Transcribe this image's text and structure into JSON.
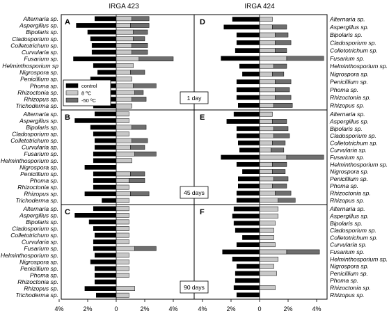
{
  "chart_data": {
    "type": "bar",
    "orientation": "horizontal",
    "titles": [
      "IRGA 423",
      "IRGA 424"
    ],
    "xlim": [
      -5,
      5
    ],
    "x_ticks": [
      "4%",
      "2%",
      "0",
      "2%",
      "4%"
    ],
    "x_tick_values": [
      -4,
      -2,
      0,
      2,
      4
    ],
    "legend": {
      "placement": "inside panel A, lower-left",
      "items": [
        {
          "label": "control",
          "color": "#000000"
        },
        {
          "label": "8 ºC",
          "color": "#c8c8c8"
        },
        {
          "label": "-50 ºC",
          "color": "#6e6e6e"
        }
      ]
    },
    "colors": {
      "control": "#000000",
      "t8": "#c8c8c8",
      "tm50": "#6e6e6e",
      "border": "#000000"
    },
    "rows": [
      {
        "day_label": "1 day",
        "panels": [
          {
            "letter": "A",
            "categories": [
              "Alternaria sp.",
              "Aspergillus sp.",
              "Bipolaris sp.",
              "Cladosporium sp.",
              "Colletotrichum sp.",
              "Curvularia sp.",
              "Fusarium sp.",
              "Helminthosporium sp",
              "Nigrospora sp.",
              "Penicillium sp.",
              "Phoma sp.",
              "Rhizoctonia sp.",
              "Rhizopus sp.",
              "Trichoderma sp."
            ],
            "control": [
              -1.5,
              -2.8,
              -2.0,
              -1.8,
              -1.7,
              -1.7,
              -3.0,
              -1.6,
              -1.3,
              -1.8,
              -1.7,
              -1.9,
              -1.5,
              -1.6
            ],
            "t8": [
              1.1,
              1.0,
              1.2,
              1.2,
              1.1,
              1.1,
              1.6,
              1.2,
              1.0,
              1.1,
              1.2,
              1.3,
              1.1,
              1.1
            ],
            "tm50": [
              1.2,
              1.3,
              1.0,
              0.8,
              1.1,
              1.1,
              2.4,
              0.0,
              1.0,
              0.0,
              1.6,
              0.6,
              1.0,
              0.0
            ]
          },
          {
            "letter": "D",
            "categories": [
              "Alternaria sp.",
              "Aspergillus sp.",
              "Bipolaris sp.",
              "Cladosporium sp.",
              "Colletotrichum sp.",
              "Fusarium sp.",
              "Helminthosporium sp.",
              "Nigrospora sp.",
              "Penicillium sp.",
              "Phoma sp.",
              "Rhizoctonia sp.",
              "Rhizopus sp."
            ],
            "control": [
              -1.9,
              -2.5,
              -1.6,
              -1.6,
              -1.7,
              -2.7,
              -1.4,
              -1.2,
              -1.6,
              -1.6,
              -1.6,
              -1.5
            ],
            "t8": [
              0.9,
              0.9,
              1.1,
              1.1,
              1.1,
              1.9,
              1.0,
              0.9,
              1.1,
              1.1,
              1.1,
              1.0
            ],
            "tm50": [
              0.0,
              1.0,
              0.9,
              1.1,
              0.8,
              2.6,
              0.9,
              0.8,
              1.1,
              1.0,
              1.1,
              1.3
            ]
          }
        ]
      },
      {
        "day_label": "45 days",
        "panels": [
          {
            "letter": "B",
            "categories": [
              "Alternaria sp.",
              "Aspergillus sp.",
              "Bipolaris sp.",
              "Cladosporium sp.",
              "Colletotrichum sp.",
              "Curvularia sp.",
              "Fusarium sp.",
              "Helminthosporium sp.",
              "Nigrospora sp.",
              "Penicillium sp.",
              "Phoma sp.",
              "Rhizoctonia sp.",
              "Rhizopus sp.",
              "Trichoderma sp."
            ],
            "control": [
              -1.5,
              -2.9,
              -1.8,
              -1.6,
              -1.5,
              -1.5,
              -1.6,
              -1.6,
              -2.2,
              -1.6,
              -1.6,
              -1.6,
              -2.2,
              -1.0
            ],
            "t8": [
              0.9,
              0.9,
              1.1,
              0.9,
              1.1,
              1.0,
              1.3,
              1.1,
              0.0,
              1.0,
              0.9,
              0.9,
              1.0,
              0.9
            ],
            "tm50": [
              0.0,
              0.0,
              1.0,
              0.0,
              1.1,
              1.0,
              1.5,
              0.0,
              0.0,
              1.0,
              1.1,
              0.0,
              1.3,
              0.0
            ]
          },
          {
            "letter": "E",
            "categories": [
              "Alternaria sp.",
              "Aspergillus sp.",
              "Bipolaris sp.",
              "Cladosporium sp.",
              "Colletotrichum sp.",
              "Curvularia sp.",
              "Fusarium sp.",
              "Helminthosporium sp.",
              "Nigrospora sp.",
              "Penicillium sp.",
              "Phoma sp.",
              "Rhizoctonia sp.",
              "Rhizopus sp."
            ],
            "control": [
              -1.8,
              -2.3,
              -1.6,
              -1.6,
              -1.5,
              -1.4,
              -2.7,
              -1.6,
              -1.2,
              -1.5,
              -1.5,
              -1.6,
              -1.6
            ],
            "t8": [
              0.9,
              0.9,
              1.0,
              1.0,
              0.9,
              0.8,
              1.9,
              0.9,
              0.9,
              1.0,
              0.9,
              1.1,
              1.3
            ],
            "tm50": [
              0.0,
              1.0,
              1.0,
              1.1,
              0.9,
              0.9,
              2.6,
              1.0,
              0.9,
              1.0,
              1.0,
              1.1,
              1.2
            ]
          }
        ]
      },
      {
        "day_label": "90 days",
        "panels": [
          {
            "letter": "C",
            "categories": [
              "Alternaria sp.",
              "Aspergillus sp.",
              "Bipolaris sp.",
              "Cladosporium sp.",
              "Colletotrichum sp.",
              "Curvularia sp.",
              "Fusarium sp.",
              "Helminthosporium sp.",
              "Nigrospora sp.",
              "Penicillium sp.",
              "Phoma sp.",
              "Rhizoctonia sp.",
              "Rhizopus sp.",
              "Trichoderma sp."
            ],
            "control": [
              -1.6,
              -2.9,
              -1.9,
              -1.6,
              -1.5,
              -1.6,
              -1.6,
              -1.5,
              -1.8,
              -1.5,
              -1.5,
              -1.5,
              -2.2,
              -1.4
            ],
            "t8": [
              0.9,
              0.9,
              0.9,
              0.9,
              0.9,
              0.9,
              1.3,
              0.9,
              0.9,
              0.9,
              0.9,
              0.0,
              1.3,
              0.9
            ],
            "tm50": [
              0.0,
              0.0,
              0.0,
              0.0,
              0.0,
              0.0,
              1.5,
              0.0,
              0.0,
              0.0,
              0.0,
              0.0,
              0.0,
              0.0
            ]
          },
          {
            "letter": "F",
            "categories": [
              "Alternaria sp.",
              "Aspergillus sp.",
              "Bipolaris sp.",
              "Cladosporium sp.",
              "Colletotrichum sp.",
              "Curvularia sp.",
              "Fusarium sp.",
              "Helminthosporium sp.",
              "Nigrospora sp.",
              "Penicillium sp.",
              "Phoma sp.",
              "Rhizoctonia sp.",
              "Rhizopus sp."
            ],
            "control": [
              -1.8,
              -1.9,
              -1.8,
              -1.7,
              -1.2,
              -1.6,
              -2.6,
              -1.9,
              -1.6,
              -1.7,
              -1.7,
              -1.8,
              -1.6
            ],
            "t8": [
              1.3,
              1.3,
              1.1,
              1.0,
              1.0,
              1.1,
              1.9,
              1.3,
              1.0,
              1.2,
              0.0,
              1.1,
              0.0
            ],
            "tm50": [
              0.0,
              0.0,
              0.0,
              0.0,
              0.0,
              0.0,
              2.3,
              0.0,
              0.0,
              0.0,
              0.0,
              0.0,
              0.0
            ]
          }
        ]
      }
    ]
  }
}
